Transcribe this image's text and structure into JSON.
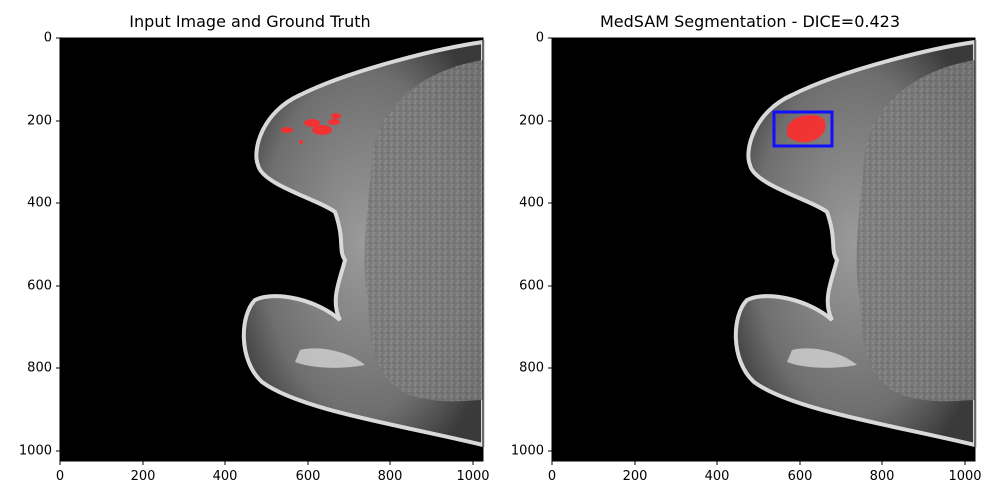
{
  "panels": [
    {
      "title": "Input Image and Ground Truth",
      "xticks": [
        "0",
        "200",
        "400",
        "600",
        "800",
        "1000"
      ],
      "yticks": [
        "0",
        "200",
        "400",
        "600",
        "800",
        "1000"
      ]
    },
    {
      "title": "MedSAM Segmentation - DICE=0.423",
      "xticks": [
        "0",
        "200",
        "400",
        "600",
        "800",
        "1000"
      ],
      "yticks": [
        "0",
        "200",
        "400",
        "600",
        "800",
        "1000"
      ]
    }
  ],
  "image": {
    "width": 1024,
    "height": 1024,
    "description_icon": "breast-mri-icon"
  },
  "ground_truth": {
    "color": "#ff2b2b"
  },
  "prediction": {
    "box": {
      "x0": 537,
      "y0": 180,
      "x1": 678,
      "y1": 263
    },
    "box_color": "#1010ff",
    "mask_color": "#ff2b2b"
  }
}
